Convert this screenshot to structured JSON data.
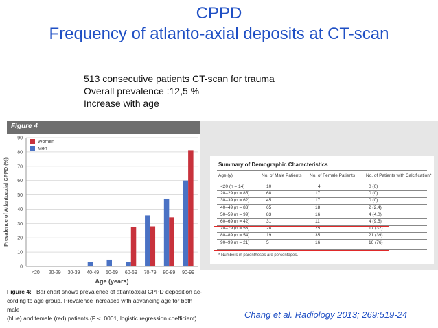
{
  "slide": {
    "title": "CPPD",
    "subtitle": "Frequency of atlanto-axial deposits at CT-scan",
    "bullets": [
      "513 consecutive patients CT-scan for trauma",
      "Overall prevalence :12,5 %",
      "Increase with age"
    ],
    "citation": "Chang et al. Radiology 2013; 269:519-24"
  },
  "figure": {
    "label": "Figure 4",
    "caption_label": "Figure 4:",
    "caption_line1": "Bar chart shows prevalence of atlantoaxial CPPD deposition ac-",
    "caption_line2": "cording to age group. Prevalence increases with advancing age for both male",
    "caption_line3": "(blue) and female (red) patients (P < .0001, logistic regression coefficient)."
  },
  "chart_data": {
    "type": "bar",
    "title": "",
    "xlabel": "Age (years)",
    "ylabel": "Prevalence of Atlantoaxial CPPD (%)",
    "ylim": [
      0,
      90
    ],
    "yticks": [
      "0",
      "10",
      "20",
      "30",
      "40",
      "50",
      "60",
      "70",
      "80",
      "90"
    ],
    "categories": [
      "<20",
      "20-29",
      "30-39",
      "40-49",
      "50-59",
      "60-69",
      "70-79",
      "80-89",
      "90-99"
    ],
    "legend_position": "top-left",
    "grid": true,
    "series": [
      {
        "name": "Women",
        "color": "#c8323c",
        "values": [
          0,
          0,
          0,
          0,
          0,
          27.3,
          28,
          34.3,
          81.2
        ]
      },
      {
        "name": "Men",
        "color": "#4a72c4",
        "values": [
          0,
          0,
          0,
          3.1,
          4.8,
          3.2,
          35.7,
          47.4,
          60
        ]
      }
    ]
  },
  "table": {
    "title": "Summary of Demographic Characteristics",
    "headers": [
      "Age (y)",
      "No. of Male Patients",
      "No. of Female Patients",
      "No. of Patients with Calcification*"
    ],
    "rows": [
      [
        "<20 (n = 14)",
        "10",
        "4",
        "0 (0)"
      ],
      [
        "20–29 (n = 85)",
        "68",
        "17",
        "0 (0)"
      ],
      [
        "30–39 (n = 62)",
        "45",
        "17",
        "0 (0)"
      ],
      [
        "40–49 (n = 83)",
        "65",
        "18",
        "2 (2.4)"
      ],
      [
        "50–59 (n = 99)",
        "83",
        "16",
        "4 (4.0)"
      ],
      [
        "60–69 (n = 42)",
        "31",
        "11",
        "4 (9.5)"
      ],
      [
        "70–79 (n = 53)",
        "28",
        "25",
        "17 (32)"
      ],
      [
        "80–89 (n = 54)",
        "19",
        "35",
        "21 (39)"
      ],
      [
        "90–99 (n = 21)",
        "5",
        "16",
        "16 (76)"
      ]
    ],
    "footnote": "* Numbers in parentheses are percentages."
  }
}
